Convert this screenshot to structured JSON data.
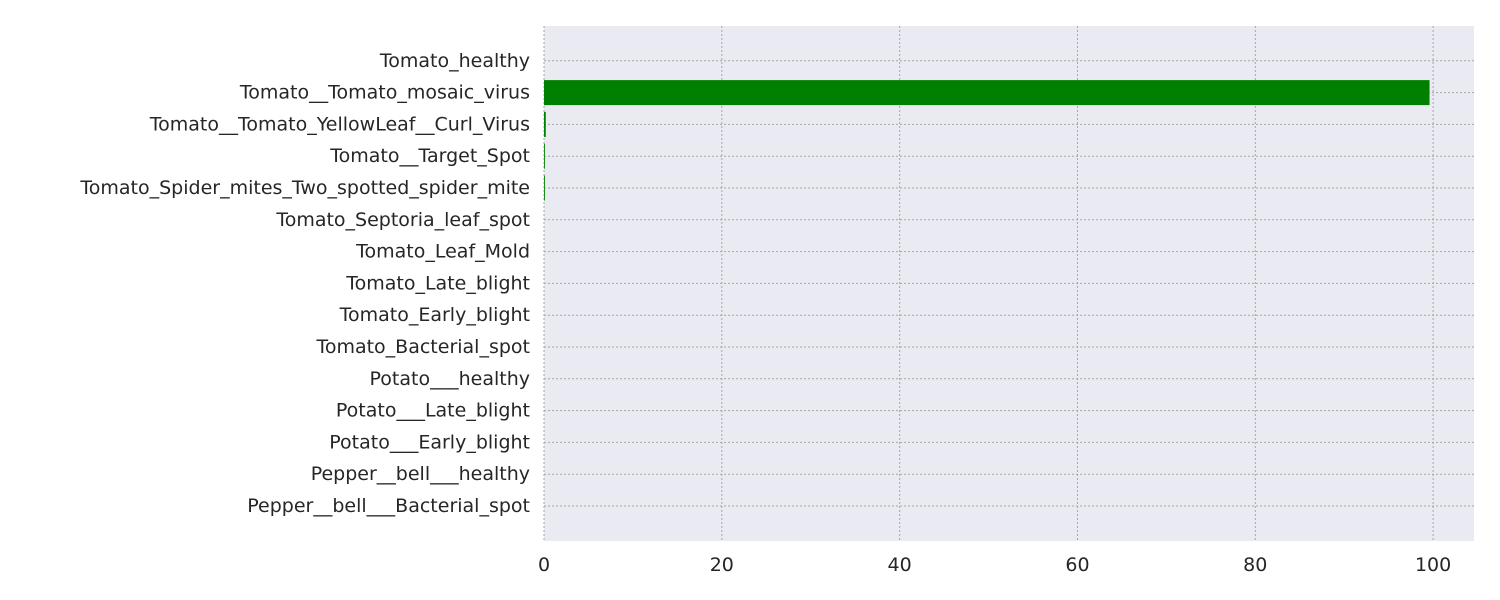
{
  "chart_data": {
    "type": "bar",
    "orientation": "horizontal",
    "title": "",
    "xlabel": "",
    "ylabel": "",
    "categories": [
      "Pepper__bell___Bacterial_spot",
      "Pepper__bell___healthy",
      "Potato___Early_blight",
      "Potato___Late_blight",
      "Potato___healthy",
      "Tomato_Bacterial_spot",
      "Tomato_Early_blight",
      "Tomato_Late_blight",
      "Tomato_Leaf_Mold",
      "Tomato_Septoria_leaf_spot",
      "Tomato_Spider_mites_Two_spotted_spider_mite",
      "Tomato__Target_Spot",
      "Tomato__Tomato_YellowLeaf__Curl_Virus",
      "Tomato__Tomato_mosaic_virus",
      "Tomato_healthy"
    ],
    "values": [
      0,
      0,
      0,
      0,
      0,
      0,
      0,
      0,
      0,
      0,
      0.1,
      0.1,
      0.2,
      99.6,
      0
    ],
    "xlim": [
      0,
      104.6
    ],
    "xticks": [
      0,
      20,
      40,
      60,
      80,
      100
    ],
    "grid": true,
    "bar_color": "#008000",
    "plot_background": "#eaeaf2",
    "grid_color": "#a6a6a6"
  }
}
